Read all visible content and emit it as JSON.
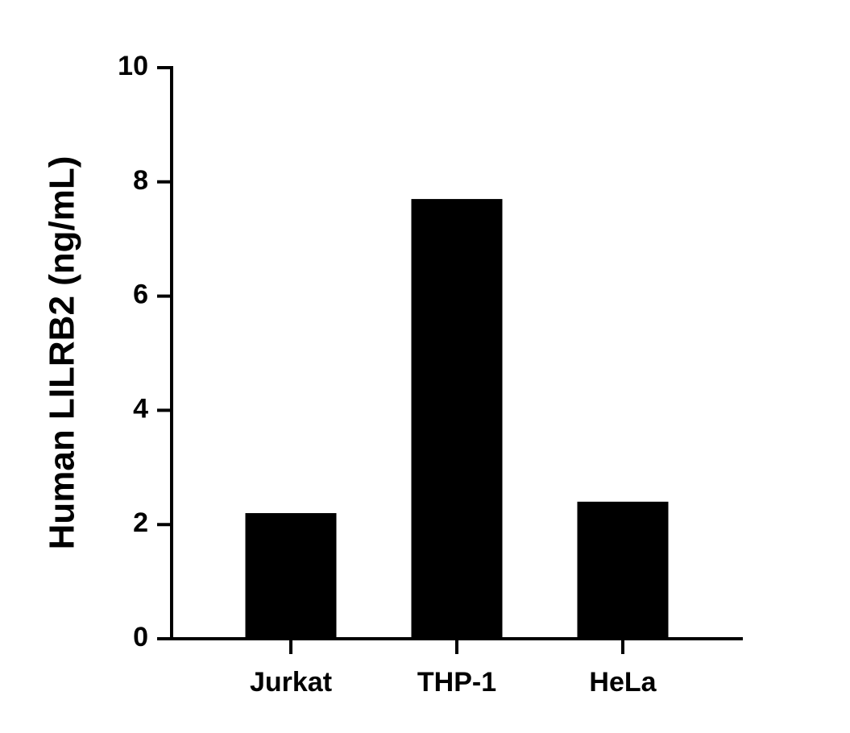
{
  "chart_data": {
    "type": "bar",
    "y_label": "Human LILRB2 (ng/mL)",
    "categories": [
      "Jurkat",
      "THP-1",
      "HeLa"
    ],
    "values": [
      2.2,
      7.7,
      2.4
    ],
    "color": "#000000",
    "ylim": [
      0,
      10
    ],
    "yticks": [
      0,
      2,
      4,
      6,
      8,
      10
    ],
    "grid": false
  }
}
